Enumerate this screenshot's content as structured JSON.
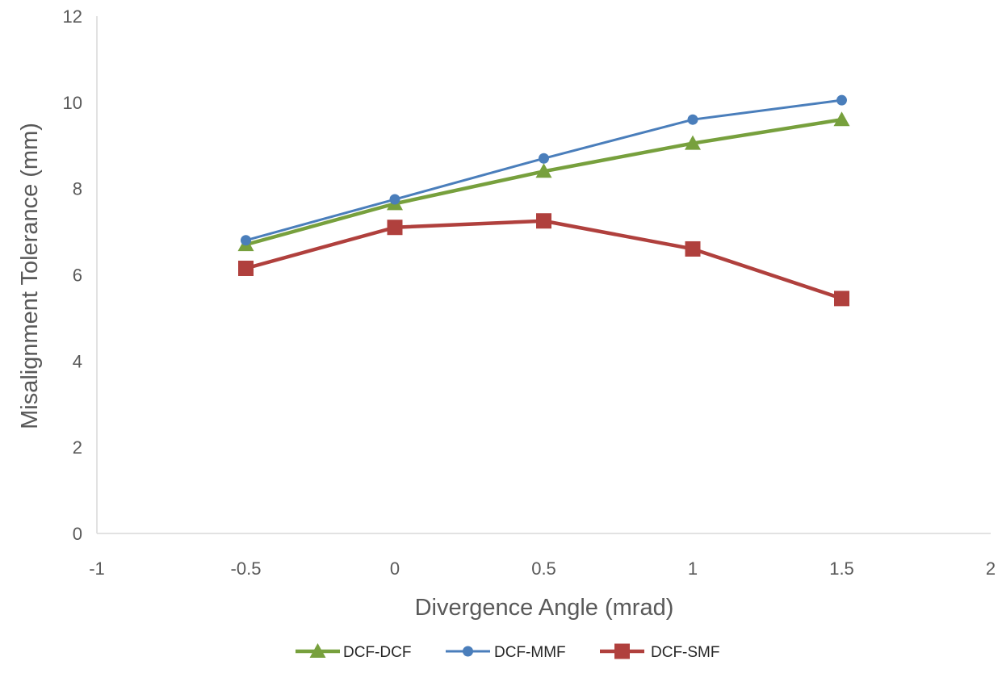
{
  "chart_data": {
    "type": "line",
    "xlabel": "Divergence Angle (mrad)",
    "ylabel": "Misalignment Tolerance (mm)",
    "xlim": [
      -1,
      2
    ],
    "ylim": [
      0,
      12
    ],
    "x_ticks": [
      "-1",
      "-0.5",
      "0",
      "0.5",
      "1",
      "1.5",
      "2"
    ],
    "y_ticks": [
      "0",
      "2",
      "4",
      "6",
      "8",
      "10",
      "12"
    ],
    "grid": false,
    "legend_position": "bottom",
    "series": [
      {
        "name": "DCF-DCF",
        "color": "#77A03D",
        "marker": "triangle",
        "x": [
          -0.5,
          0,
          0.5,
          1,
          1.5
        ],
        "y": [
          6.7,
          7.65,
          8.4,
          9.05,
          9.6
        ]
      },
      {
        "name": "DCF-MMF",
        "color": "#4A7EBB",
        "marker": "circle",
        "x": [
          -0.5,
          0,
          0.5,
          1,
          1.5
        ],
        "y": [
          6.8,
          7.75,
          8.7,
          9.6,
          10.05
        ]
      },
      {
        "name": "DCF-SMF",
        "color": "#B0403D",
        "marker": "square",
        "x": [
          -0.5,
          0,
          0.5,
          1,
          1.5
        ],
        "y": [
          6.15,
          7.1,
          7.25,
          6.6,
          5.45
        ]
      }
    ]
  }
}
